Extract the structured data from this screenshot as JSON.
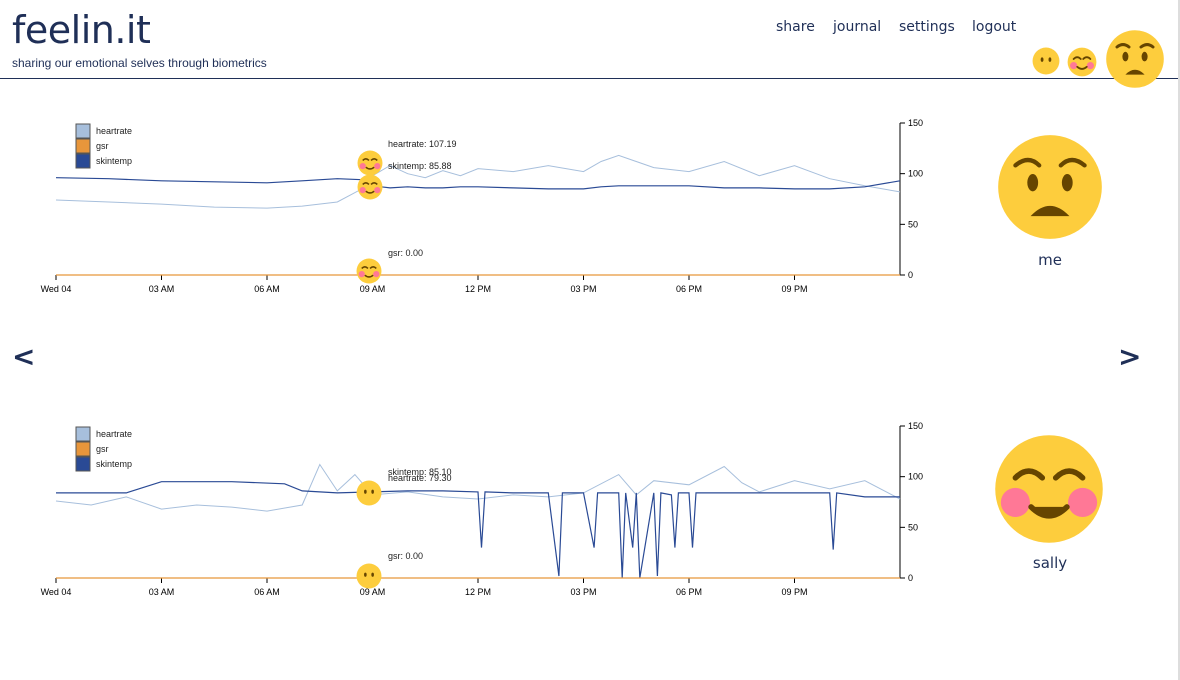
{
  "app": {
    "logo": "feelin.it",
    "tagline": "sharing our emotional selves through biometrics"
  },
  "nav": {
    "share": "share",
    "journal": "journal",
    "settings": "settings",
    "logout": "logout"
  },
  "header_emojis": [
    "neutral-face",
    "smiling-face-with-blush",
    "anxious-face"
  ],
  "arrows": {
    "prev": "<",
    "next": ">"
  },
  "colors": {
    "navy": "#1f2f57",
    "heartrate": "#a7bfdc",
    "gsr": "#e8963b",
    "skintemp": "#2a4a95",
    "emoji_yellow": "#fdcd3d"
  },
  "chart_data": [
    {
      "type": "line",
      "user": "me",
      "legend": [
        "heartrate",
        "gsr",
        "skintemp"
      ],
      "x_ticks": [
        "Wed 04",
        "03 AM",
        "06 AM",
        "09 AM",
        "12 PM",
        "03 PM",
        "06 PM",
        "09 PM"
      ],
      "y_ticks": [
        0,
        50,
        100,
        150
      ],
      "ylim": [
        0,
        150
      ],
      "annotations": {
        "heartrate": "heartrate: 107.19",
        "skintemp": "skintemp: 85.88",
        "gsr": "gsr: 0.00"
      },
      "marker_emojis": [
        "smiling-face-with-blush",
        "smiling-face-with-blush",
        "smiling-face-with-blush"
      ],
      "series": [
        {
          "name": "heartrate",
          "x": [
            0,
            1.5,
            3,
            4.5,
            6,
            7,
            8,
            8.7,
            9,
            9.5,
            10,
            10.5,
            11,
            11.5,
            12,
            13,
            14,
            15,
            15.5,
            16,
            17,
            18,
            19,
            20,
            21,
            22,
            23,
            24
          ],
          "values": [
            74,
            72,
            70,
            67,
            66,
            68,
            72,
            85,
            98,
            108,
            100,
            96,
            103,
            98,
            105,
            102,
            108,
            102,
            112,
            118,
            106,
            102,
            112,
            98,
            108,
            95,
            88,
            82
          ]
        },
        {
          "name": "skintemp",
          "x": [
            0,
            1.5,
            3,
            4.5,
            6,
            7,
            8,
            8.7,
            9,
            9.5,
            10,
            10.5,
            11,
            11.5,
            12,
            13,
            14,
            15,
            15.5,
            16,
            17,
            18,
            19,
            20,
            21,
            22,
            23,
            24
          ],
          "values": [
            96,
            95,
            93,
            92,
            91,
            93,
            95,
            94,
            88,
            86,
            87,
            86,
            86,
            87,
            87,
            86,
            85,
            85,
            87,
            88,
            88,
            88,
            86,
            86,
            85,
            85,
            87,
            93
          ]
        },
        {
          "name": "gsr",
          "x": [
            0,
            24
          ],
          "values": [
            0,
            0
          ]
        }
      ]
    },
    {
      "type": "line",
      "user": "sally",
      "legend": [
        "heartrate",
        "gsr",
        "skintemp"
      ],
      "x_ticks": [
        "Wed 04",
        "03 AM",
        "06 AM",
        "09 AM",
        "12 PM",
        "03 PM",
        "06 PM",
        "09 PM"
      ],
      "y_ticks": [
        0,
        50,
        100,
        150
      ],
      "ylim": [
        0,
        150
      ],
      "annotations": {
        "heartrate": "heartrate: 79.30",
        "skintemp": "skintemp: 85.10",
        "gsr": "gsr: 0.00"
      },
      "marker_emojis": [
        "neutral-face",
        "neutral-face"
      ],
      "series": [
        {
          "name": "heartrate",
          "x": [
            0,
            1,
            2,
            3,
            4,
            5,
            6,
            7,
            7.5,
            8,
            8.5,
            9,
            10,
            11,
            12,
            13,
            14,
            15,
            16,
            16.5,
            17,
            18,
            19,
            19.5,
            20,
            21,
            22,
            23,
            24
          ],
          "values": [
            76,
            72,
            80,
            68,
            72,
            70,
            66,
            72,
            112,
            86,
            102,
            82,
            85,
            80,
            78,
            82,
            80,
            84,
            102,
            82,
            96,
            92,
            110,
            94,
            85,
            96,
            88,
            96,
            78
          ]
        },
        {
          "name": "skintemp",
          "x": [
            0,
            2,
            3,
            5,
            6.5,
            7,
            8,
            9,
            10,
            11,
            12,
            12.1,
            12.2,
            13,
            14,
            14.3,
            14.4,
            15,
            15.3,
            15.4,
            16,
            16.1,
            16.2,
            16.4,
            16.5,
            16.6,
            17,
            17.1,
            17.2,
            17.5,
            17.6,
            17.7,
            18,
            18.1,
            18.2,
            19,
            21,
            22,
            22.1,
            22.2,
            23,
            24
          ],
          "values": [
            84,
            84,
            95,
            95,
            93,
            86,
            84,
            85,
            86,
            86,
            85,
            30,
            85,
            84,
            84,
            2,
            84,
            84,
            30,
            84,
            84,
            0,
            84,
            30,
            84,
            0,
            84,
            2,
            84,
            82,
            30,
            84,
            84,
            30,
            84,
            84,
            84,
            84,
            28,
            84,
            80,
            80
          ]
        },
        {
          "name": "gsr",
          "x": [
            0,
            24
          ],
          "values": [
            0,
            0
          ]
        }
      ]
    }
  ],
  "users": [
    {
      "name": "me",
      "emoji": "anxious-face"
    },
    {
      "name": "sally",
      "emoji": "smiling-face-with-blush"
    }
  ]
}
